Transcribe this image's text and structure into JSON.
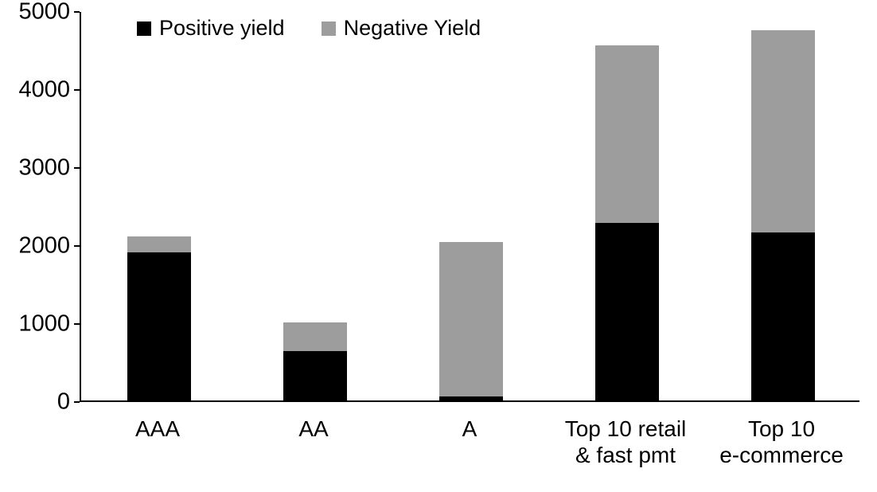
{
  "chart_data": {
    "type": "bar",
    "stacked": true,
    "title": "",
    "xlabel": "",
    "ylabel": "",
    "categories": [
      "AAA",
      "AA",
      "A",
      "Top 10 retail\n& fast pmt",
      "Top 10\ne-commerce"
    ],
    "series": [
      {
        "name": "Positive yield",
        "color": "#000000",
        "values": [
          1900,
          630,
          50,
          2280,
          2150
        ]
      },
      {
        "name": "Negative Yield",
        "color": "#9d9d9d",
        "values": [
          200,
          370,
          1980,
          2270,
          2600
        ]
      }
    ],
    "totals": [
      2100,
      1000,
      2030,
      4550,
      4750
    ],
    "ylim": [
      0,
      5000
    ],
    "yticks": [
      0,
      1000,
      2000,
      3000,
      4000,
      5000
    ],
    "grid": false,
    "legend_position": "top-inside"
  }
}
